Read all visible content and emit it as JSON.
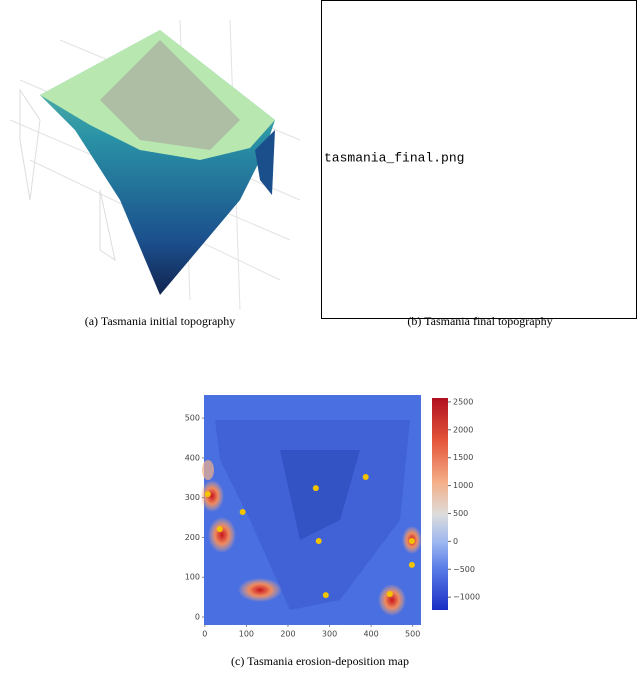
{
  "captions": [
    "(a)  Tasmania initial topography",
    "(b)  Tasmania final topography",
    "(c)  Tasmania erosion-deposition map"
  ],
  "placeholder": "tasmania_final.png",
  "chart_data": {
    "type": "heatmap",
    "xlim": [
      -2,
      520
    ],
    "ylim": [
      -20,
      558
    ],
    "xticks": [
      0,
      100,
      200,
      300,
      400,
      500
    ],
    "yticks": [
      0,
      100,
      200,
      300,
      400,
      500
    ],
    "points": {
      "color": "#f5c400",
      "x": [
        7,
        91,
        36,
        267,
        387,
        274,
        291,
        445,
        498,
        498
      ],
      "y": [
        309,
        264,
        221,
        324,
        352,
        191,
        55,
        58,
        191,
        131
      ]
    },
    "colorbar": {
      "lim": [
        -1230,
        2570
      ],
      "ticks": [
        2500,
        2000,
        1500,
        1000,
        500,
        0,
        {
          "value": -500,
          "label": "−500"
        },
        {
          "value": -1000,
          "label": "−1000"
        }
      ]
    }
  }
}
